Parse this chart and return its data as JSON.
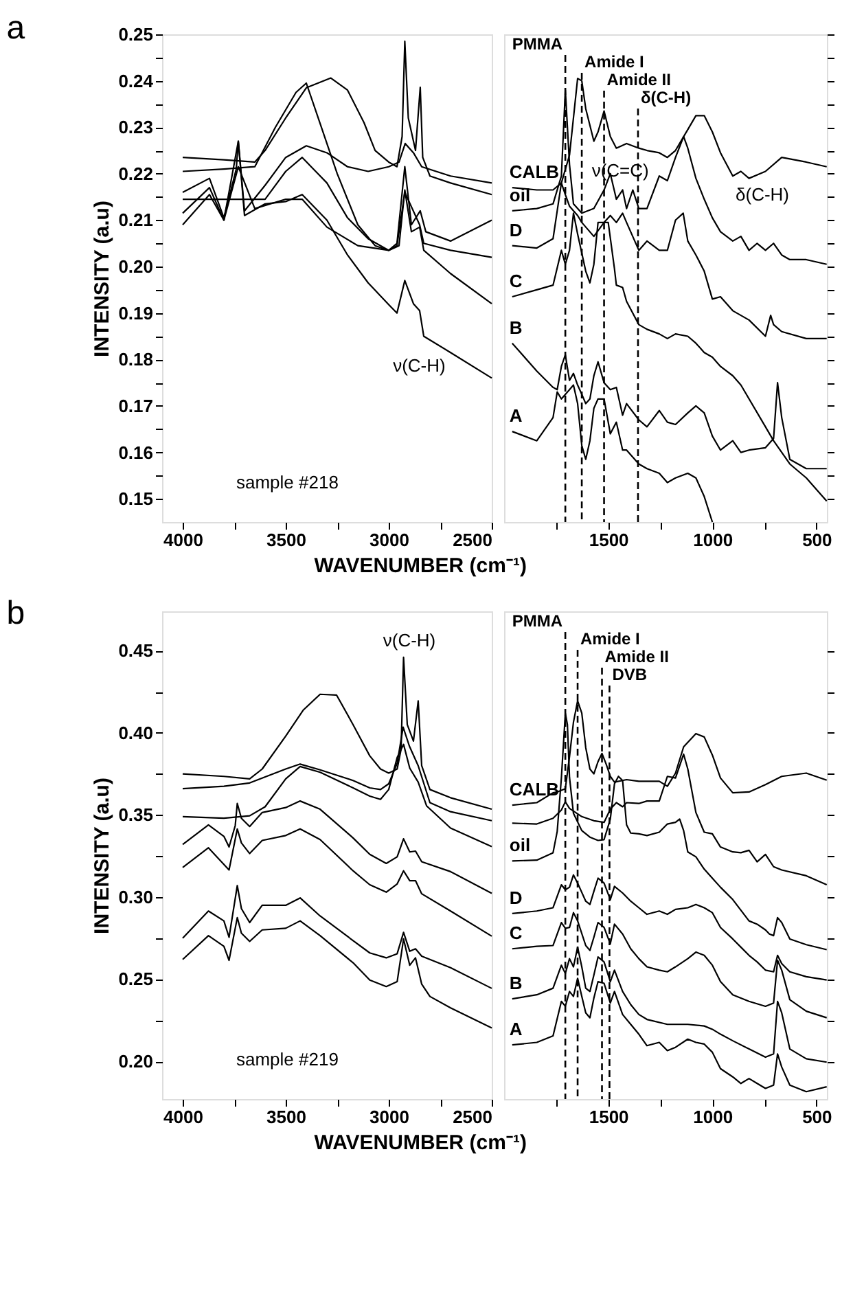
{
  "chart_data": [
    {
      "type": "line",
      "title": "a",
      "xlabel": "WAVENUMBER (cm⁻¹)",
      "ylabel": "INTENSITY (a.u)",
      "xlim": [
        4100,
        2500
      ],
      "ylim": [
        0.145,
        0.25
      ],
      "xticks": [
        4000,
        {
          "value": 3750,
          "label": null
        },
        3500,
        {
          "value": 3250,
          "label": null
        },
        3000,
        {
          "value": 2750,
          "label": null
        },
        2500
      ],
      "yticks": [
        0.15,
        {
          "value": 0.155,
          "label": null
        },
        0.16,
        {
          "value": 0.165,
          "label": null
        },
        0.17,
        {
          "value": 0.175,
          "label": null
        },
        0.18,
        {
          "value": 0.185,
          "label": null
        },
        0.19,
        {
          "value": 0.195,
          "label": null
        },
        {
          "value": 0.2,
          "label": "0.20"
        },
        {
          "value": 0.205,
          "label": null
        },
        0.21,
        {
          "value": 0.215,
          "label": null
        },
        0.22,
        {
          "value": 0.225,
          "label": null
        },
        0.23,
        {
          "value": 0.235,
          "label": null
        },
        0.24,
        {
          "value": 0.245,
          "label": null
        },
        0.25
      ],
      "annotations": [
        "sample #218",
        "ν(C-H)"
      ],
      "series": [
        {
          "color": "#000000",
          "x": [
            4000,
            3800,
            3650,
            3600,
            3500,
            3400,
            3281,
            3200,
            3120,
            3066,
            3000,
            2960,
            2935,
            2922,
            2905,
            2870,
            2847,
            2835,
            2800,
            2700,
            2500
          ],
          "values": [
            0.2235,
            0.223,
            0.2225,
            0.225,
            0.232,
            0.2385,
            0.2406,
            0.238,
            0.231,
            0.225,
            0.2225,
            0.2215,
            0.228,
            0.2485,
            0.232,
            0.225,
            0.2386,
            0.2235,
            0.2195,
            0.218,
            0.2155
          ]
        },
        {
          "color": "#000000",
          "x": [
            4000,
            3800,
            3650,
            3550,
            3450,
            3400,
            3350,
            3250,
            3150,
            3066,
            3000,
            2960,
            2922,
            2890,
            2847,
            2820,
            2700,
            2500
          ],
          "values": [
            0.2205,
            0.221,
            0.2215,
            0.23,
            0.2375,
            0.2395,
            0.233,
            0.22,
            0.209,
            0.2045,
            0.2035,
            0.205,
            0.2215,
            0.209,
            0.212,
            0.2075,
            0.2055,
            0.21
          ]
        },
        {
          "color": "#000000",
          "x": [
            4000,
            3870,
            3800,
            3740,
            3730,
            3700,
            3600,
            3500,
            3400,
            3300,
            3200,
            3100,
            3000,
            2950,
            2920,
            2880,
            2840,
            2700,
            2500
          ],
          "values": [
            0.216,
            0.219,
            0.2105,
            0.221,
            0.227,
            0.212,
            0.2175,
            0.2235,
            0.226,
            0.2245,
            0.2215,
            0.2205,
            0.2215,
            0.2225,
            0.2265,
            0.2245,
            0.2215,
            0.2195,
            0.218
          ]
        },
        {
          "color": "#000000",
          "x": [
            4000,
            3800,
            3600,
            3500,
            3420,
            3300,
            3200,
            3100,
            3000,
            2950,
            2922,
            2890,
            2850,
            2830,
            2700,
            2500
          ],
          "values": [
            0.2145,
            0.2145,
            0.2145,
            0.2205,
            0.2235,
            0.218,
            0.2105,
            0.206,
            0.2035,
            0.2045,
            0.2165,
            0.2075,
            0.2085,
            0.2035,
            0.1985,
            0.192
          ]
        },
        {
          "color": "#000000",
          "x": [
            4000,
            3870,
            3800,
            3730,
            3700,
            3600,
            3500,
            3420,
            3300,
            3200,
            3100,
            3000,
            2960,
            2922,
            2880,
            2850,
            2830,
            2700,
            2500
          ],
          "values": [
            0.2115,
            0.217,
            0.21,
            0.227,
            0.211,
            0.2135,
            0.214,
            0.2155,
            0.21,
            0.2025,
            0.1965,
            0.1918,
            0.19,
            0.197,
            0.192,
            0.1905,
            0.185,
            0.1815,
            0.176
          ]
        },
        {
          "color": "#000000",
          "x": [
            4000,
            3870,
            3800,
            3730,
            3650,
            3500,
            3420,
            3300,
            3150,
            3000,
            2960,
            2922,
            2850,
            2830,
            2700,
            2500
          ],
          "values": [
            0.209,
            0.2155,
            0.21,
            0.2215,
            0.2125,
            0.2145,
            0.2145,
            0.2085,
            0.2045,
            0.2035,
            0.2045,
            0.216,
            0.209,
            0.205,
            0.2035,
            0.202
          ]
        }
      ]
    },
    {
      "type": "line",
      "xlim": [
        2000,
        450
      ],
      "ylim": [
        0.145,
        0.25
      ],
      "tick_labels": "x",
      "xticks": [
        {
          "value": 1750,
          "label": null
        },
        1500,
        {
          "value": 1250,
          "label": null
        },
        1000,
        {
          "value": 750,
          "label": null
        },
        500
      ],
      "yticks": [
        0.15,
        0.155,
        0.16,
        0.165,
        0.17,
        0.175,
        0.18,
        0.185,
        0.19,
        0.195,
        0.2,
        0.205,
        0.21,
        0.215,
        0.22,
        0.225,
        0.23,
        0.235,
        0.24,
        0.245,
        0.25
      ],
      "ref_lines": [
        {
          "axis": "x",
          "value": 1706,
          "label": "PMMA",
          "line_style": "dashed"
        },
        {
          "axis": "x",
          "value": 1627,
          "label": "Amide I",
          "line_style": "dashed"
        },
        {
          "axis": "x",
          "value": 1520,
          "label": "Amide II",
          "line_style": "dashed"
        },
        {
          "axis": "x",
          "value": 1357,
          "label": "δ(C-H)",
          "line_style": "dashed"
        }
      ],
      "annotations": [
        "ν(C=C)",
        "δ(C-H)"
      ],
      "series": [
        {
          "name": "CALB",
          "color": "#000000",
          "x": [
            1961,
            1843,
            1765,
            1725,
            1686,
            1667,
            1647,
            1627,
            1608,
            1569,
            1549,
            1520,
            1490,
            1461,
            1412,
            1353,
            1314,
            1255,
            1216,
            1177,
            1118,
            1079,
            1039,
            1000,
            961,
            902,
            863,
            824,
            745,
            667,
            549,
            451
          ],
          "values": [
            0.217,
            0.2165,
            0.2165,
            0.218,
            0.224,
            0.232,
            0.2405,
            0.24,
            0.234,
            0.227,
            0.229,
            0.2335,
            0.228,
            0.2255,
            0.2265,
            0.2255,
            0.225,
            0.2245,
            0.2235,
            0.225,
            0.2295,
            0.2325,
            0.2325,
            0.229,
            0.2245,
            0.2195,
            0.2205,
            0.219,
            0.2205,
            0.2235,
            0.2225,
            0.2215
          ]
        },
        {
          "name": "oil",
          "color": "#000000",
          "x": [
            1961,
            1843,
            1765,
            1725,
            1706,
            1686,
            1667,
            1627,
            1569,
            1520,
            1490,
            1461,
            1431,
            1412,
            1382,
            1353,
            1314,
            1255,
            1216,
            1177,
            1138,
            1118,
            1079,
            1039,
            1000,
            961,
            902,
            863,
            824,
            785,
            745,
            706,
            667,
            628,
            549,
            451
          ],
          "values": [
            0.212,
            0.2125,
            0.2135,
            0.2195,
            0.238,
            0.222,
            0.2135,
            0.2115,
            0.2125,
            0.2165,
            0.22,
            0.2145,
            0.2165,
            0.2125,
            0.2165,
            0.2125,
            0.2125,
            0.2195,
            0.2185,
            0.2235,
            0.228,
            0.2255,
            0.219,
            0.2145,
            0.2105,
            0.2075,
            0.2055,
            0.2065,
            0.2035,
            0.205,
            0.2035,
            0.205,
            0.2025,
            0.2015,
            0.2015,
            0.2005
          ]
        },
        {
          "name": "D",
          "color": "#000000",
          "x": [
            1961,
            1843,
            1765,
            1745,
            1725,
            1706,
            1686,
            1647,
            1627,
            1569,
            1520,
            1490,
            1461,
            1431,
            1412,
            1353,
            1314,
            1255,
            1216,
            1177,
            1140,
            1118,
            1079,
            1039,
            1000,
            961,
            902,
            824,
            745,
            720,
            706,
            667,
            549,
            451
          ],
          "values": [
            0.2045,
            0.204,
            0.206,
            0.212,
            0.218,
            0.2155,
            0.213,
            0.211,
            0.2095,
            0.2065,
            0.2095,
            0.211,
            0.2095,
            0.2115,
            0.2095,
            0.2035,
            0.2055,
            0.2035,
            0.2035,
            0.21,
            0.2115,
            0.2055,
            0.2025,
            0.199,
            0.193,
            0.1935,
            0.1905,
            0.1885,
            0.185,
            0.1895,
            0.1875,
            0.186,
            0.1845,
            0.1845
          ]
        },
        {
          "name": "C",
          "color": "#000000",
          "x": [
            1961,
            1843,
            1765,
            1725,
            1706,
            1686,
            1667,
            1647,
            1608,
            1588,
            1569,
            1549,
            1520,
            1500,
            1470,
            1461,
            1431,
            1412,
            1353,
            1314,
            1255,
            1216,
            1177,
            1118,
            1079,
            1039,
            1000,
            961,
            902,
            863,
            745,
            706,
            628,
            549,
            451
          ],
          "values": [
            0.1935,
            0.195,
            0.196,
            0.2035,
            0.2005,
            0.2035,
            0.2115,
            0.207,
            0.199,
            0.1965,
            0.2005,
            0.2095,
            0.2095,
            0.2095,
            0.1995,
            0.196,
            0.1955,
            0.1925,
            0.1875,
            0.1865,
            0.1855,
            0.1845,
            0.1855,
            0.185,
            0.1835,
            0.1815,
            0.1805,
            0.1785,
            0.1765,
            0.1745,
            0.1655,
            0.1625,
            0.1575,
            0.1545,
            0.1495
          ]
        },
        {
          "name": "B",
          "color": "#000000",
          "x": [
            1961,
            1843,
            1765,
            1745,
            1725,
            1706,
            1686,
            1667,
            1647,
            1627,
            1608,
            1588,
            1569,
            1549,
            1520,
            1490,
            1461,
            1431,
            1412,
            1353,
            1314,
            1255,
            1216,
            1177,
            1118,
            1079,
            1039,
            1000,
            961,
            902,
            863,
            824,
            745,
            706,
            687,
            667,
            628,
            549,
            451
          ],
          "values": [
            0.1835,
            0.1775,
            0.174,
            0.1735,
            0.1785,
            0.181,
            0.1755,
            0.177,
            0.1745,
            0.1725,
            0.1705,
            0.1715,
            0.1765,
            0.1795,
            0.175,
            0.1735,
            0.174,
            0.168,
            0.1705,
            0.167,
            0.1655,
            0.169,
            0.1665,
            0.166,
            0.1685,
            0.17,
            0.1685,
            0.1635,
            0.1605,
            0.1625,
            0.16,
            0.1605,
            0.161,
            0.163,
            0.175,
            0.1675,
            0.1585,
            0.1565,
            0.1565
          ]
        },
        {
          "name": "A",
          "color": "#000000",
          "x": [
            1961,
            1843,
            1765,
            1745,
            1725,
            1686,
            1667,
            1647,
            1627,
            1608,
            1588,
            1569,
            1549,
            1520,
            1490,
            1461,
            1431,
            1412,
            1353,
            1314,
            1255,
            1216,
            1177,
            1118,
            1079,
            1039,
            1000
          ],
          "values": [
            0.1645,
            0.1625,
            0.1675,
            0.173,
            0.1715,
            0.1735,
            0.1745,
            0.1705,
            0.1615,
            0.1585,
            0.1625,
            0.1695,
            0.1715,
            0.1715,
            0.164,
            0.1665,
            0.1605,
            0.1605,
            0.1575,
            0.1565,
            0.1555,
            0.1535,
            0.1545,
            0.1555,
            0.1545,
            0.1505,
            0.145
          ]
        }
      ]
    },
    {
      "type": "line",
      "title": "b",
      "xlabel": "WAVENUMBER (cm⁻¹)",
      "ylabel": "INTENSITY (a.u)",
      "xlim": [
        4100,
        2500
      ],
      "ylim": [
        0.177,
        0.474
      ],
      "xticks": [
        4000,
        {
          "value": 3750,
          "label": null
        },
        3500,
        {
          "value": 3250,
          "label": null
        },
        3000,
        {
          "value": 2750,
          "label": null
        },
        2500
      ],
      "yticks": [
        {
          "value": 0.2,
          "label": "0.20"
        },
        {
          "value": 0.225,
          "label": null
        },
        0.25,
        {
          "value": 0.275,
          "label": null
        },
        {
          "value": 0.3,
          "label": "0.30"
        },
        {
          "value": 0.325,
          "label": null
        },
        0.35,
        {
          "value": 0.375,
          "label": null
        },
        {
          "value": 0.4,
          "label": "0.40"
        },
        {
          "value": 0.425,
          "label": null
        },
        0.45
      ],
      "annotations": [
        "sample #219",
        "ν(C-H)"
      ],
      "series": [
        {
          "color": "#000000",
          "x": [
            4000,
            3800,
            3675,
            3614,
            3500,
            3414,
            3333,
            3253,
            3173,
            3092,
            3040,
            3000,
            2959,
            2940,
            2928,
            2910,
            2880,
            2857,
            2840,
            2800,
            2700,
            2500
          ],
          "values": [
            0.375,
            0.3735,
            0.372,
            0.378,
            0.398,
            0.414,
            0.4235,
            0.423,
            0.405,
            0.386,
            0.378,
            0.3755,
            0.378,
            0.39,
            0.446,
            0.405,
            0.395,
            0.4195,
            0.38,
            0.3655,
            0.3605,
            0.3535
          ]
        },
        {
          "color": "#000000",
          "x": [
            4000,
            3800,
            3675,
            3500,
            3430,
            3333,
            3173,
            3092,
            3040,
            3000,
            2959,
            2930,
            2900,
            2857,
            2800,
            2700,
            2500
          ],
          "values": [
            0.366,
            0.3675,
            0.3695,
            0.378,
            0.381,
            0.3775,
            0.371,
            0.3665,
            0.3655,
            0.369,
            0.3815,
            0.4035,
            0.392,
            0.38,
            0.3575,
            0.352,
            0.3465
          ]
        },
        {
          "color": "#000000",
          "x": [
            4000,
            3800,
            3675,
            3600,
            3500,
            3430,
            3333,
            3173,
            3092,
            3040,
            3000,
            2959,
            2928,
            2898,
            2857,
            2816,
            2700,
            2500
          ],
          "values": [
            0.349,
            0.348,
            0.3495,
            0.355,
            0.372,
            0.3795,
            0.376,
            0.3665,
            0.3615,
            0.3595,
            0.3655,
            0.385,
            0.393,
            0.3785,
            0.37,
            0.3555,
            0.342,
            0.3307
          ]
        },
        {
          "color": "#000000",
          "x": [
            4000,
            3875,
            3800,
            3775,
            3745,
            3735,
            3715,
            3675,
            3614,
            3500,
            3430,
            3333,
            3173,
            3092,
            3012,
            2959,
            2928,
            2898,
            2870,
            2840,
            2700,
            2500
          ],
          "values": [
            0.332,
            0.344,
            0.337,
            0.3305,
            0.3435,
            0.357,
            0.348,
            0.343,
            0.3515,
            0.3545,
            0.3585,
            0.3535,
            0.336,
            0.326,
            0.3205,
            0.3245,
            0.3355,
            0.3275,
            0.328,
            0.3215,
            0.3155,
            0.3023
          ]
        },
        {
          "color": "#000000",
          "x": [
            4000,
            3875,
            3775,
            3735,
            3715,
            3675,
            3614,
            3500,
            3430,
            3333,
            3173,
            3092,
            3012,
            2959,
            2928,
            2898,
            2870,
            2840,
            2700,
            2500
          ],
          "values": [
            0.318,
            0.33,
            0.3165,
            0.3415,
            0.333,
            0.3265,
            0.3345,
            0.3375,
            0.3415,
            0.335,
            0.316,
            0.3075,
            0.303,
            0.308,
            0.316,
            0.31,
            0.31,
            0.302,
            0.2915,
            0.2762
          ]
        },
        {
          "color": "#000000",
          "x": [
            4000,
            3875,
            3800,
            3775,
            3735,
            3715,
            3675,
            3614,
            3500,
            3430,
            3333,
            3173,
            3092,
            3012,
            2959,
            2928,
            2898,
            2870,
            2840,
            2700,
            2500
          ],
          "values": [
            0.275,
            0.2915,
            0.2855,
            0.2755,
            0.307,
            0.293,
            0.2845,
            0.295,
            0.295,
            0.2995,
            0.2885,
            0.2735,
            0.266,
            0.263,
            0.2655,
            0.2785,
            0.267,
            0.2685,
            0.264,
            0.257,
            0.2444
          ]
        },
        {
          "color": "#000000",
          "x": [
            4000,
            3875,
            3800,
            3775,
            3735,
            3715,
            3675,
            3614,
            3500,
            3430,
            3333,
            3173,
            3092,
            3012,
            2959,
            2928,
            2898,
            2870,
            2840,
            2800,
            2700,
            2500
          ],
          "values": [
            0.262,
            0.2765,
            0.27,
            0.2615,
            0.2875,
            0.278,
            0.273,
            0.28,
            0.281,
            0.2855,
            0.2765,
            0.26,
            0.2495,
            0.2455,
            0.2485,
            0.2745,
            0.2585,
            0.263,
            0.247,
            0.2395,
            0.2325,
            0.2203
          ]
        }
      ]
    },
    {
      "type": "line",
      "xlim": [
        2000,
        450
      ],
      "ylim": [
        0.177,
        0.474
      ],
      "tick_labels": "x",
      "xticks": [
        {
          "value": 1750,
          "label": null
        },
        1500,
        {
          "value": 1250,
          "label": null
        },
        1000,
        {
          "value": 750,
          "label": null
        },
        500
      ],
      "yticks": [
        0.2,
        0.225,
        0.25,
        0.275,
        0.3,
        0.325,
        0.35,
        0.375,
        0.4,
        0.425,
        0.45
      ],
      "ref_lines": [
        {
          "axis": "x",
          "value": 1706,
          "label": "PMMA",
          "line_style": "dashed"
        },
        {
          "axis": "x",
          "value": 1647,
          "label": "Amide I",
          "line_style": "dashed"
        },
        {
          "axis": "x",
          "value": 1530,
          "label": "Amide II",
          "line_style": "dashed"
        },
        {
          "axis": "x",
          "value": 1494,
          "label": "DVB",
          "line_style": "dashed"
        }
      ],
      "series": [
        {
          "name": "CALB",
          "color": "#000000",
          "x": [
            1961,
            1843,
            1765,
            1745,
            1725,
            1706,
            1686,
            1667,
            1647,
            1627,
            1608,
            1588,
            1569,
            1549,
            1530,
            1510,
            1490,
            1470,
            1412,
            1353,
            1314,
            1255,
            1216,
            1177,
            1138,
            1079,
            1039,
            1000,
            961,
            902,
            824,
            745,
            667,
            549,
            451
          ],
          "values": [
            0.356,
            0.3575,
            0.3635,
            0.364,
            0.365,
            0.366,
            0.3855,
            0.4065,
            0.4195,
            0.412,
            0.391,
            0.378,
            0.375,
            0.3825,
            0.3875,
            0.381,
            0.3735,
            0.37,
            0.3715,
            0.3705,
            0.3705,
            0.3705,
            0.3675,
            0.3755,
            0.3915,
            0.3995,
            0.3975,
            0.3865,
            0.3725,
            0.3635,
            0.364,
            0.3685,
            0.3735,
            0.3755,
            0.3712
          ]
        },
        {
          "color": "#000000",
          "x": [
            1961,
            1843,
            1765,
            1725,
            1706,
            1686,
            1627,
            1569,
            1520,
            1490,
            1461,
            1431,
            1412,
            1353,
            1314,
            1255,
            1216,
            1177,
            1138,
            1118,
            1079,
            1039,
            1000,
            961,
            902,
            863,
            824,
            785,
            745,
            706,
            667,
            549,
            451
          ],
          "values": [
            0.345,
            0.3445,
            0.348,
            0.353,
            0.358,
            0.354,
            0.349,
            0.3465,
            0.3455,
            0.3535,
            0.3575,
            0.355,
            0.3575,
            0.357,
            0.3585,
            0.3585,
            0.3735,
            0.3725,
            0.387,
            0.378,
            0.3515,
            0.3395,
            0.3385,
            0.3305,
            0.3275,
            0.327,
            0.3285,
            0.3215,
            0.326,
            0.3185,
            0.3165,
            0.313,
            0.3075
          ]
        },
        {
          "name": "oil",
          "color": "#000000",
          "x": [
            1961,
            1843,
            1765,
            1745,
            1725,
            1706,
            1696,
            1686,
            1667,
            1627,
            1588,
            1549,
            1520,
            1490,
            1470,
            1451,
            1431,
            1412,
            1392,
            1353,
            1314,
            1255,
            1216,
            1177,
            1157,
            1138,
            1118,
            1079,
            1039,
            1000,
            961,
            902,
            824,
            785,
            745,
            726,
            706,
            687,
            667,
            628,
            549,
            451
          ],
          "values": [
            0.322,
            0.3225,
            0.327,
            0.34,
            0.3725,
            0.4119,
            0.405,
            0.373,
            0.351,
            0.3405,
            0.3365,
            0.3345,
            0.335,
            0.3475,
            0.369,
            0.3735,
            0.371,
            0.344,
            0.339,
            0.3385,
            0.3375,
            0.3395,
            0.3445,
            0.3455,
            0.3475,
            0.3405,
            0.3275,
            0.3245,
            0.317,
            0.3115,
            0.306,
            0.2985,
            0.2855,
            0.2835,
            0.28,
            0.2775,
            0.2765,
            0.2875,
            0.2845,
            0.2745,
            0.271,
            0.268
          ]
        },
        {
          "name": "D",
          "color": "#000000",
          "x": [
            1961,
            1843,
            1765,
            1725,
            1706,
            1686,
            1667,
            1647,
            1608,
            1588,
            1569,
            1549,
            1520,
            1490,
            1470,
            1431,
            1392,
            1353,
            1314,
            1255,
            1216,
            1177,
            1118,
            1079,
            1039,
            1000,
            961,
            902,
            863,
            824,
            785,
            745,
            706,
            687,
            667,
            628,
            549,
            451
          ],
          "values": [
            0.29,
            0.2915,
            0.2935,
            0.3075,
            0.3045,
            0.306,
            0.3135,
            0.3085,
            0.2975,
            0.2955,
            0.3035,
            0.3115,
            0.3085,
            0.2985,
            0.3065,
            0.3025,
            0.2975,
            0.2935,
            0.2895,
            0.2915,
            0.2895,
            0.2925,
            0.2935,
            0.2955,
            0.2935,
            0.2905,
            0.2815,
            0.2745,
            0.2695,
            0.2645,
            0.2605,
            0.2555,
            0.2545,
            0.2645,
            0.2595,
            0.2545,
            0.2515,
            0.2495
          ]
        },
        {
          "name": "C",
          "color": "#000000",
          "x": [
            1961,
            1843,
            1765,
            1725,
            1706,
            1686,
            1667,
            1647,
            1608,
            1588,
            1569,
            1549,
            1520,
            1490,
            1470,
            1431,
            1392,
            1353,
            1314,
            1255,
            1216,
            1177,
            1118,
            1079,
            1039,
            1000,
            961,
            902,
            824,
            745,
            706,
            687,
            667,
            628,
            549,
            451
          ],
          "values": [
            0.2685,
            0.27,
            0.2705,
            0.2845,
            0.281,
            0.2815,
            0.2905,
            0.2855,
            0.2705,
            0.2675,
            0.2755,
            0.2845,
            0.2815,
            0.2715,
            0.2835,
            0.2775,
            0.2685,
            0.2625,
            0.2575,
            0.2555,
            0.2545,
            0.2575,
            0.2625,
            0.2665,
            0.2645,
            0.2585,
            0.2485,
            0.2405,
            0.2365,
            0.2335,
            0.2355,
            0.2615,
            0.2555,
            0.2375,
            0.2305,
            0.2265
          ]
        },
        {
          "name": "B",
          "color": "#000000",
          "x": [
            1961,
            1843,
            1765,
            1725,
            1706,
            1686,
            1667,
            1647,
            1627,
            1608,
            1588,
            1569,
            1549,
            1520,
            1490,
            1470,
            1431,
            1392,
            1353,
            1314,
            1216,
            1118,
            1039,
            1000,
            961,
            902,
            824,
            745,
            706,
            687,
            667,
            628,
            549,
            451
          ],
          "values": [
            0.238,
            0.2405,
            0.2445,
            0.2585,
            0.2535,
            0.2625,
            0.2575,
            0.2695,
            0.2575,
            0.2445,
            0.2425,
            0.2525,
            0.2635,
            0.2605,
            0.2485,
            0.2555,
            0.2425,
            0.2345,
            0.2285,
            0.2255,
            0.2225,
            0.2225,
            0.2215,
            0.2195,
            0.2165,
            0.2125,
            0.2075,
            0.2025,
            0.2045,
            0.2365,
            0.2295,
            0.2075,
            0.2015,
            0.1995
          ]
        },
        {
          "name": "A",
          "color": "#000000",
          "x": [
            1961,
            1843,
            1765,
            1725,
            1706,
            1686,
            1667,
            1647,
            1627,
            1608,
            1588,
            1569,
            1549,
            1520,
            1490,
            1470,
            1431,
            1392,
            1353,
            1314,
            1255,
            1216,
            1177,
            1118,
            1079,
            1039,
            1000,
            961,
            902,
            863,
            824,
            785,
            745,
            706,
            687,
            667,
            628,
            549,
            451
          ],
          "values": [
            0.21,
            0.2115,
            0.2155,
            0.2365,
            0.2335,
            0.2425,
            0.2395,
            0.2505,
            0.2395,
            0.2295,
            0.2265,
            0.2385,
            0.2485,
            0.2475,
            0.2355,
            0.2425,
            0.2285,
            0.2225,
            0.2165,
            0.2095,
            0.2115,
            0.2065,
            0.2085,
            0.2135,
            0.2115,
            0.2105,
            0.2055,
            0.1955,
            0.1905,
            0.1865,
            0.1895,
            0.1865,
            0.1835,
            0.1855,
            0.2045,
            0.1965,
            0.1855,
            0.1815,
            0.1845
          ]
        }
      ]
    }
  ]
}
